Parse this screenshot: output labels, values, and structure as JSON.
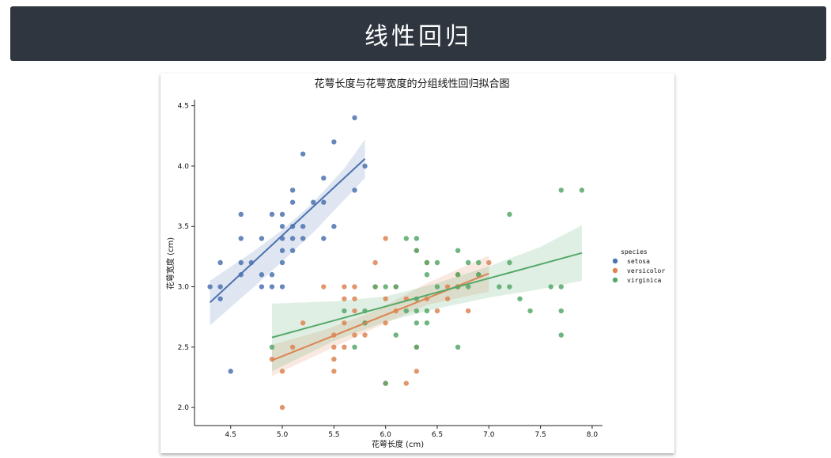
{
  "header": {
    "title": "线性回归"
  },
  "chart_data": {
    "type": "scatter",
    "title": "花萼长度与花萼宽度的分组线性回归拟合图",
    "xlabel": "花萼长度 (cm)",
    "ylabel": "花萼宽度 (cm)",
    "xlim": [
      4.15,
      8.1
    ],
    "ylim": [
      1.85,
      4.55
    ],
    "xticks": [
      4.5,
      5.0,
      5.5,
      6.0,
      6.5,
      7.0,
      7.5,
      8.0
    ],
    "yticks": [
      2.0,
      2.5,
      3.0,
      3.5,
      4.0,
      4.5
    ],
    "grid": false,
    "legend": {
      "title": "species",
      "placement": "right"
    },
    "series": [
      {
        "name": "setosa",
        "color": "#4c72b0",
        "points": [
          [
            4.3,
            3.0
          ],
          [
            4.4,
            2.9
          ],
          [
            4.4,
            3.0
          ],
          [
            4.4,
            3.2
          ],
          [
            4.5,
            2.3
          ],
          [
            4.6,
            3.1
          ],
          [
            4.6,
            3.2
          ],
          [
            4.6,
            3.4
          ],
          [
            4.6,
            3.6
          ],
          [
            4.7,
            3.2
          ],
          [
            4.8,
            3.0
          ],
          [
            4.8,
            3.1
          ],
          [
            4.8,
            3.4
          ],
          [
            4.9,
            3.0
          ],
          [
            4.9,
            3.1
          ],
          [
            4.9,
            3.6
          ],
          [
            5.0,
            3.0
          ],
          [
            5.0,
            3.2
          ],
          [
            5.0,
            3.3
          ],
          [
            5.0,
            3.4
          ],
          [
            5.0,
            3.5
          ],
          [
            5.0,
            3.6
          ],
          [
            5.1,
            3.3
          ],
          [
            5.1,
            3.4
          ],
          [
            5.1,
            3.5
          ],
          [
            5.1,
            3.7
          ],
          [
            5.1,
            3.8
          ],
          [
            5.2,
            3.4
          ],
          [
            5.2,
            3.5
          ],
          [
            5.2,
            4.1
          ],
          [
            5.3,
            3.7
          ],
          [
            5.4,
            3.4
          ],
          [
            5.4,
            3.7
          ],
          [
            5.4,
            3.9
          ],
          [
            5.5,
            3.5
          ],
          [
            5.5,
            4.2
          ],
          [
            5.7,
            3.8
          ],
          [
            5.7,
            4.4
          ],
          [
            5.8,
            4.0
          ]
        ],
        "fit": {
          "x": [
            4.3,
            5.8
          ],
          "y": [
            2.87,
            4.06
          ]
        },
        "ci_upper": [
          [
            4.3,
            3.05
          ],
          [
            4.7,
            3.28
          ],
          [
            5.0,
            3.47
          ],
          [
            5.3,
            3.7
          ],
          [
            5.6,
            3.98
          ],
          [
            5.8,
            4.22
          ]
        ],
        "ci_lower": [
          [
            4.3,
            2.68
          ],
          [
            4.7,
            2.98
          ],
          [
            5.0,
            3.21
          ],
          [
            5.3,
            3.45
          ],
          [
            5.6,
            3.72
          ],
          [
            5.8,
            3.9
          ]
        ]
      },
      {
        "name": "versicolor",
        "color": "#dd8452",
        "points": [
          [
            4.9,
            2.4
          ],
          [
            5.0,
            2.0
          ],
          [
            5.0,
            2.3
          ],
          [
            5.1,
            2.5
          ],
          [
            5.2,
            2.7
          ],
          [
            5.4,
            3.0
          ],
          [
            5.5,
            2.3
          ],
          [
            5.5,
            2.4
          ],
          [
            5.5,
            2.5
          ],
          [
            5.5,
            2.6
          ],
          [
            5.6,
            2.5
          ],
          [
            5.6,
            2.7
          ],
          [
            5.6,
            2.9
          ],
          [
            5.6,
            3.0
          ],
          [
            5.7,
            2.6
          ],
          [
            5.7,
            2.8
          ],
          [
            5.7,
            2.9
          ],
          [
            5.7,
            3.0
          ],
          [
            5.8,
            2.6
          ],
          [
            5.8,
            2.7
          ],
          [
            5.9,
            3.0
          ],
          [
            5.9,
            3.2
          ],
          [
            6.0,
            2.2
          ],
          [
            6.0,
            2.7
          ],
          [
            6.0,
            2.9
          ],
          [
            6.0,
            3.4
          ],
          [
            6.1,
            2.8
          ],
          [
            6.1,
            3.0
          ],
          [
            6.2,
            2.2
          ],
          [
            6.2,
            2.9
          ],
          [
            6.3,
            2.3
          ],
          [
            6.3,
            2.5
          ],
          [
            6.3,
            3.3
          ],
          [
            6.4,
            2.9
          ],
          [
            6.4,
            3.2
          ],
          [
            6.5,
            2.8
          ],
          [
            6.6,
            2.9
          ],
          [
            6.6,
            3.0
          ],
          [
            6.7,
            3.0
          ],
          [
            6.7,
            3.1
          ],
          [
            6.8,
            2.8
          ],
          [
            6.9,
            3.1
          ],
          [
            7.0,
            3.2
          ]
        ],
        "fit": {
          "x": [
            4.9,
            7.0
          ],
          "y": [
            2.39,
            3.11
          ]
        },
        "ci_upper": [
          [
            4.9,
            2.52
          ],
          [
            5.4,
            2.64
          ],
          [
            5.9,
            2.8
          ],
          [
            6.4,
            3.03
          ],
          [
            7.0,
            3.26
          ]
        ],
        "ci_lower": [
          [
            4.9,
            2.26
          ],
          [
            5.4,
            2.46
          ],
          [
            5.9,
            2.66
          ],
          [
            6.4,
            2.85
          ],
          [
            7.0,
            2.96
          ]
        ]
      },
      {
        "name": "virginica",
        "color": "#55a868",
        "points": [
          [
            4.9,
            2.5
          ],
          [
            5.6,
            2.8
          ],
          [
            5.7,
            2.5
          ],
          [
            5.8,
            2.7
          ],
          [
            5.8,
            2.8
          ],
          [
            5.9,
            3.0
          ],
          [
            6.0,
            2.2
          ],
          [
            6.0,
            3.0
          ],
          [
            6.1,
            2.6
          ],
          [
            6.1,
            3.0
          ],
          [
            6.2,
            2.8
          ],
          [
            6.2,
            3.4
          ],
          [
            6.3,
            2.5
          ],
          [
            6.3,
            2.7
          ],
          [
            6.3,
            2.8
          ],
          [
            6.3,
            2.9
          ],
          [
            6.3,
            3.3
          ],
          [
            6.3,
            3.4
          ],
          [
            6.4,
            2.7
          ],
          [
            6.4,
            2.8
          ],
          [
            6.4,
            3.1
          ],
          [
            6.4,
            3.2
          ],
          [
            6.5,
            3.0
          ],
          [
            6.5,
            3.2
          ],
          [
            6.7,
            2.5
          ],
          [
            6.7,
            3.0
          ],
          [
            6.7,
            3.1
          ],
          [
            6.7,
            3.3
          ],
          [
            6.8,
            3.0
          ],
          [
            6.8,
            3.2
          ],
          [
            6.9,
            3.1
          ],
          [
            6.9,
            3.2
          ],
          [
            7.1,
            3.0
          ],
          [
            7.2,
            3.0
          ],
          [
            7.2,
            3.2
          ],
          [
            7.2,
            3.6
          ],
          [
            7.3,
            2.9
          ],
          [
            7.4,
            2.8
          ],
          [
            7.6,
            3.0
          ],
          [
            7.7,
            2.6
          ],
          [
            7.7,
            2.8
          ],
          [
            7.7,
            3.0
          ],
          [
            7.7,
            3.8
          ],
          [
            7.9,
            3.8
          ]
        ],
        "fit": {
          "x": [
            4.9,
            7.9
          ],
          "y": [
            2.58,
            3.28
          ]
        },
        "ci_upper": [
          [
            4.9,
            2.86
          ],
          [
            5.5,
            2.88
          ],
          [
            6.0,
            2.92
          ],
          [
            6.5,
            3.03
          ],
          [
            7.0,
            3.17
          ],
          [
            7.5,
            3.33
          ],
          [
            7.9,
            3.51
          ]
        ],
        "ci_lower": [
          [
            4.9,
            2.3
          ],
          [
            5.5,
            2.55
          ],
          [
            6.0,
            2.71
          ],
          [
            6.5,
            2.82
          ],
          [
            7.0,
            2.91
          ],
          [
            7.5,
            2.98
          ],
          [
            7.9,
            3.05
          ]
        ]
      }
    ]
  }
}
